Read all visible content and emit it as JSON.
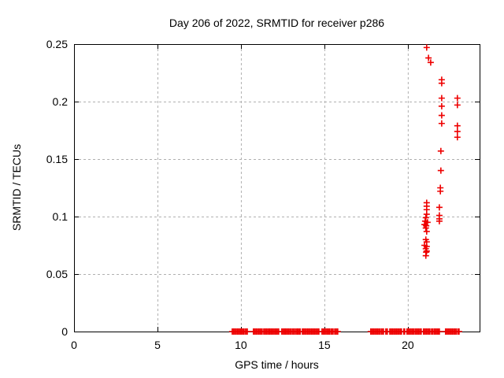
{
  "chart_data": {
    "type": "scatter",
    "title": "Day 206 of 2022, SRMTID for receiver p286",
    "xlabel": "GPS time / hours",
    "ylabel": "SRMTID / TECUs",
    "xlim": [
      0,
      24.3
    ],
    "ylim": [
      0,
      0.25
    ],
    "xticks": [
      0,
      5,
      10,
      15,
      20
    ],
    "xtick_labels": [
      "0",
      "5",
      "10",
      "15",
      "20"
    ],
    "yticks": [
      0,
      0.05,
      0.1,
      0.15,
      0.2,
      0.25
    ],
    "ytick_labels": [
      "0",
      "0.05",
      "0.1",
      "0.15",
      "0.2",
      "0.25"
    ],
    "grid": true,
    "legend_position": "none",
    "marker": "plus",
    "marker_color": "#ee0000",
    "grid_color": "#b0b0b0",
    "axis_color": "#000000",
    "series": [
      {
        "name": "SRMTID",
        "points": [
          [
            21.13,
            0.247
          ],
          [
            21.24,
            0.238
          ],
          [
            21.37,
            0.234
          ],
          [
            22.03,
            0.219
          ],
          [
            22.03,
            0.216
          ],
          [
            22.03,
            0.203
          ],
          [
            22.03,
            0.196
          ],
          [
            22.03,
            0.188
          ],
          [
            22.03,
            0.181
          ],
          [
            21.98,
            0.157
          ],
          [
            21.98,
            0.14
          ],
          [
            21.95,
            0.125
          ],
          [
            21.95,
            0.122
          ],
          [
            22.97,
            0.203
          ],
          [
            22.97,
            0.197
          ],
          [
            22.97,
            0.179
          ],
          [
            22.97,
            0.174
          ],
          [
            22.97,
            0.169
          ],
          [
            21.89,
            0.108
          ],
          [
            21.89,
            0.101
          ],
          [
            21.89,
            0.098
          ],
          [
            21.89,
            0.096
          ],
          [
            21.13,
            0.112
          ],
          [
            21.13,
            0.109
          ],
          [
            21.13,
            0.106
          ],
          [
            21.13,
            0.102
          ],
          [
            21.08,
            0.099
          ],
          [
            21.04,
            0.096
          ],
          [
            21.18,
            0.095
          ],
          [
            21.0,
            0.093
          ],
          [
            21.1,
            0.092
          ],
          [
            21.08,
            0.09
          ],
          [
            21.13,
            0.087
          ],
          [
            21.08,
            0.08
          ],
          [
            21.13,
            0.078
          ],
          [
            21.0,
            0.075
          ],
          [
            21.13,
            0.074
          ],
          [
            21.08,
            0.072
          ],
          [
            21.13,
            0.07
          ],
          [
            21.1,
            0.069
          ],
          [
            21.08,
            0.066
          ]
        ]
      }
    ],
    "zero_value_runs_hours": [
      [
        9.48,
        10.0
      ],
      [
        10.05,
        10.19
      ],
      [
        10.28,
        10.38
      ],
      [
        10.75,
        11.27
      ],
      [
        11.37,
        11.7
      ],
      [
        11.75,
        12.26
      ],
      [
        12.45,
        12.64
      ],
      [
        12.69,
        13.02
      ],
      [
        13.11,
        13.21
      ],
      [
        13.3,
        13.4
      ],
      [
        13.45,
        13.55
      ],
      [
        13.68,
        14.67
      ],
      [
        14.86,
        15.33
      ],
      [
        15.42,
        15.52
      ],
      [
        15.62,
        15.8
      ],
      [
        17.78,
        18.35
      ],
      [
        18.44,
        18.54
      ],
      [
        18.68,
        18.77
      ],
      [
        18.92,
        19.62
      ],
      [
        19.76,
        19.81
      ],
      [
        19.95,
        20.38
      ],
      [
        20.47,
        20.8
      ],
      [
        20.94,
        21.32
      ],
      [
        21.42,
        21.51
      ],
      [
        21.6,
        21.89
      ],
      [
        22.26,
        22.92
      ],
      [
        23.02,
        23.07
      ]
    ]
  }
}
